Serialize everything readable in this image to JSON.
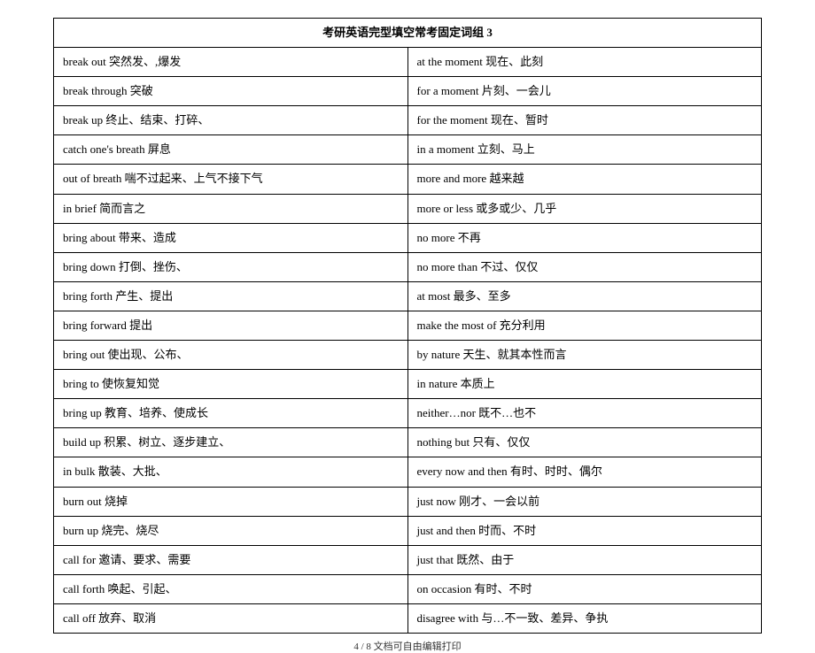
{
  "header_title": "考研英语完型填空常考固定词组 3",
  "rows": [
    {
      "left": "break out  突然发、,爆发",
      "right": "at the moment 现在、此刻"
    },
    {
      "left": "break through  突破",
      "right": "for a moment  片刻、一会儿"
    },
    {
      "left": "break up  终止、结束、打碎、",
      "right": "for the moment  现在、暂时"
    },
    {
      "left": "catch one's breath  屏息",
      "right": "in a moment  立刻、马上"
    },
    {
      "left": "out of breath  喘不过起来、上气不接下气",
      "right": "more and more  越来越"
    },
    {
      "left": "in brief  简而言之",
      "right": "more or less  或多或少、几乎"
    },
    {
      "left": "bring about 带来、造成",
      "right": "no more  不再"
    },
    {
      "left": "bring down  打倒、挫伤、",
      "right": "no more than  不过、仅仅"
    },
    {
      "left": "bring forth  产生、提出",
      "right": "at most   最多、至多"
    },
    {
      "left": "bring forward  提出",
      "right": "make the most of  充分利用"
    },
    {
      "left": "bring out  使出现、公布、",
      "right": "by nature  天生、就其本性而言"
    },
    {
      "left": "bring to  使恢复知觉",
      "right": "in nature  本质上"
    },
    {
      "left": "bring up  教育、培养、使成长",
      "right": "neither…nor 既不…也不"
    },
    {
      "left": "build up  积累、树立、逐步建立、",
      "right": "nothing but  只有、仅仅"
    },
    {
      "left": "in bulk  散装、大批、",
      "right": "every now and then  有时、时时、偶尔"
    },
    {
      "left": "burn out  烧掉",
      "right": "just now  刚才、一会以前"
    },
    {
      "left": "burn up  烧完、烧尽",
      "right": "just and then  时而、不时"
    },
    {
      "left": "call for  邀请、要求、需要",
      "right": "just that  既然、由于"
    },
    {
      "left": "call forth 唤起、引起、",
      "right": "on occasion  有时、不时"
    },
    {
      "left": "call off  放弃、取消",
      "right": "disagree with  与…不一致、差异、争执"
    }
  ],
  "footer_text": "4 / 8 文档可自由编辑打印"
}
